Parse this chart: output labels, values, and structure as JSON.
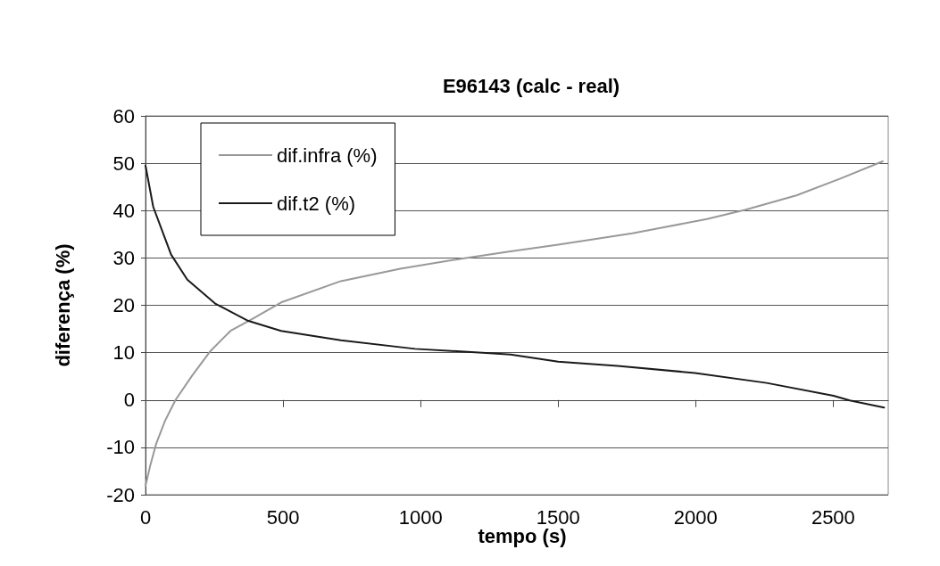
{
  "chart_data": {
    "type": "line",
    "title": "E96143 (calc - real)",
    "xlabel": "tempo (s)",
    "ylabel": "diferença (%)",
    "xlim": [
      0,
      2700
    ],
    "xticks": [
      0,
      500,
      1000,
      1500,
      2000,
      2500
    ],
    "ylim": [
      -20,
      60
    ],
    "yticks": [
      -20,
      -10,
      0,
      10,
      20,
      30,
      40,
      50,
      60
    ],
    "grid": "y",
    "legend": "top left",
    "marker": "none",
    "series": [
      {
        "name": "dif.infra (%)",
        "color": "#999999",
        "x": [
          0,
          17,
          39,
          71,
          109,
          169,
          234,
          309,
          385,
          493,
          710,
          926,
          1143,
          1316,
          1500,
          1770,
          2041,
          2182,
          2366,
          2528,
          2680
        ],
        "values": [
          -18.1,
          -13.9,
          -9.2,
          -4.4,
          0,
          5.1,
          10.2,
          14.6,
          17.0,
          20.6,
          25.1,
          27.7,
          29.8,
          31.3,
          32.8,
          35.2,
          38.2,
          40.2,
          43.2,
          46.8,
          50.4
        ]
      },
      {
        "name": "dif.t2 (%)",
        "color": "#1a1a1a",
        "x": [
          0,
          28,
          93,
          152,
          255,
          374,
          493,
          710,
          980,
          1251,
          1327,
          1500,
          1716,
          1998,
          2258,
          2501,
          2560,
          2685
        ],
        "values": [
          49.5,
          40.8,
          30.7,
          25.4,
          20.3,
          16.7,
          14.6,
          12.6,
          10.8,
          9.9,
          9.6,
          8.1,
          7.2,
          5.7,
          3.6,
          0.9,
          -0.1,
          -1.6
        ]
      }
    ]
  }
}
